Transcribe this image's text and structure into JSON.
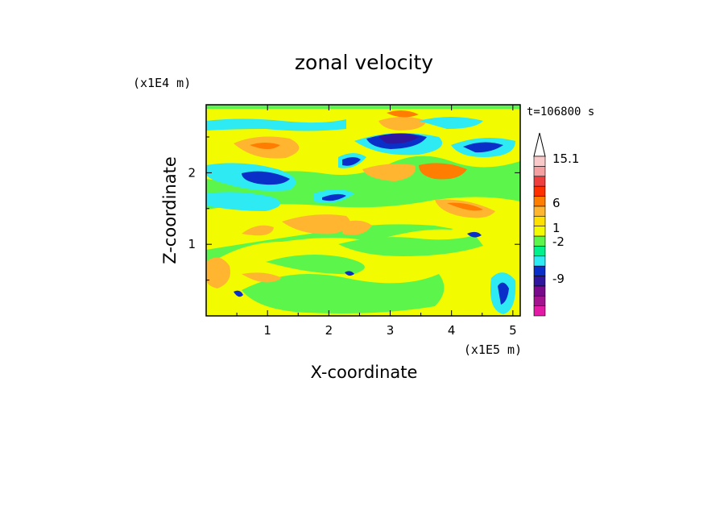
{
  "chart_data": {
    "type": "heatmap",
    "title": "zonal velocity",
    "xlabel": "X-coordinate",
    "ylabel": "Z-coordinate",
    "x_unit": "(x1E5 m)",
    "y_unit": "(x1E4 m)",
    "time_label": "t=106800 s",
    "xlim": [
      0,
      5.12
    ],
    "ylim": [
      0,
      2.95
    ],
    "x_ticks": [
      "1",
      "2",
      "3",
      "4",
      "5"
    ],
    "y_ticks": [
      "1",
      "2"
    ],
    "grid": false,
    "colorbar": {
      "labels": [
        "15.1",
        "6",
        "1",
        "-2",
        "-9"
      ],
      "palette": [
        "#e21aa6",
        "#a3128f",
        "#7a0a8c",
        "#30159e",
        "#0a2fc8",
        "#2eeaf2",
        "#00f08c",
        "#5cf54c",
        "#f2fb00",
        "#ffe000",
        "#ffb530",
        "#ff7d00",
        "#ff3000",
        "#ee3e3e",
        "#f5a0a0",
        "#f9c8c8"
      ]
    },
    "field_features": [
      {
        "x": 3.15,
        "z": 2.45,
        "value": -7,
        "desc": "strong negative core"
      },
      {
        "x": 2.4,
        "z": 2.15,
        "value": -5
      },
      {
        "x": 1.1,
        "z": 1.9,
        "value": -4
      },
      {
        "x": 3.65,
        "z": 2.2,
        "value": 5
      },
      {
        "x": 3.05,
        "z": 2.7,
        "value": 4
      },
      {
        "x": 2.0,
        "z": 1.6,
        "value": -4
      },
      {
        "x": 1.3,
        "z": 1.3,
        "value": 3
      },
      {
        "x": 4.5,
        "z": 1.6,
        "value": 4
      },
      {
        "x": 2.3,
        "z": 0.7,
        "value": -1
      },
      {
        "x": 4.95,
        "z": 0.35,
        "value": -3
      }
    ]
  }
}
